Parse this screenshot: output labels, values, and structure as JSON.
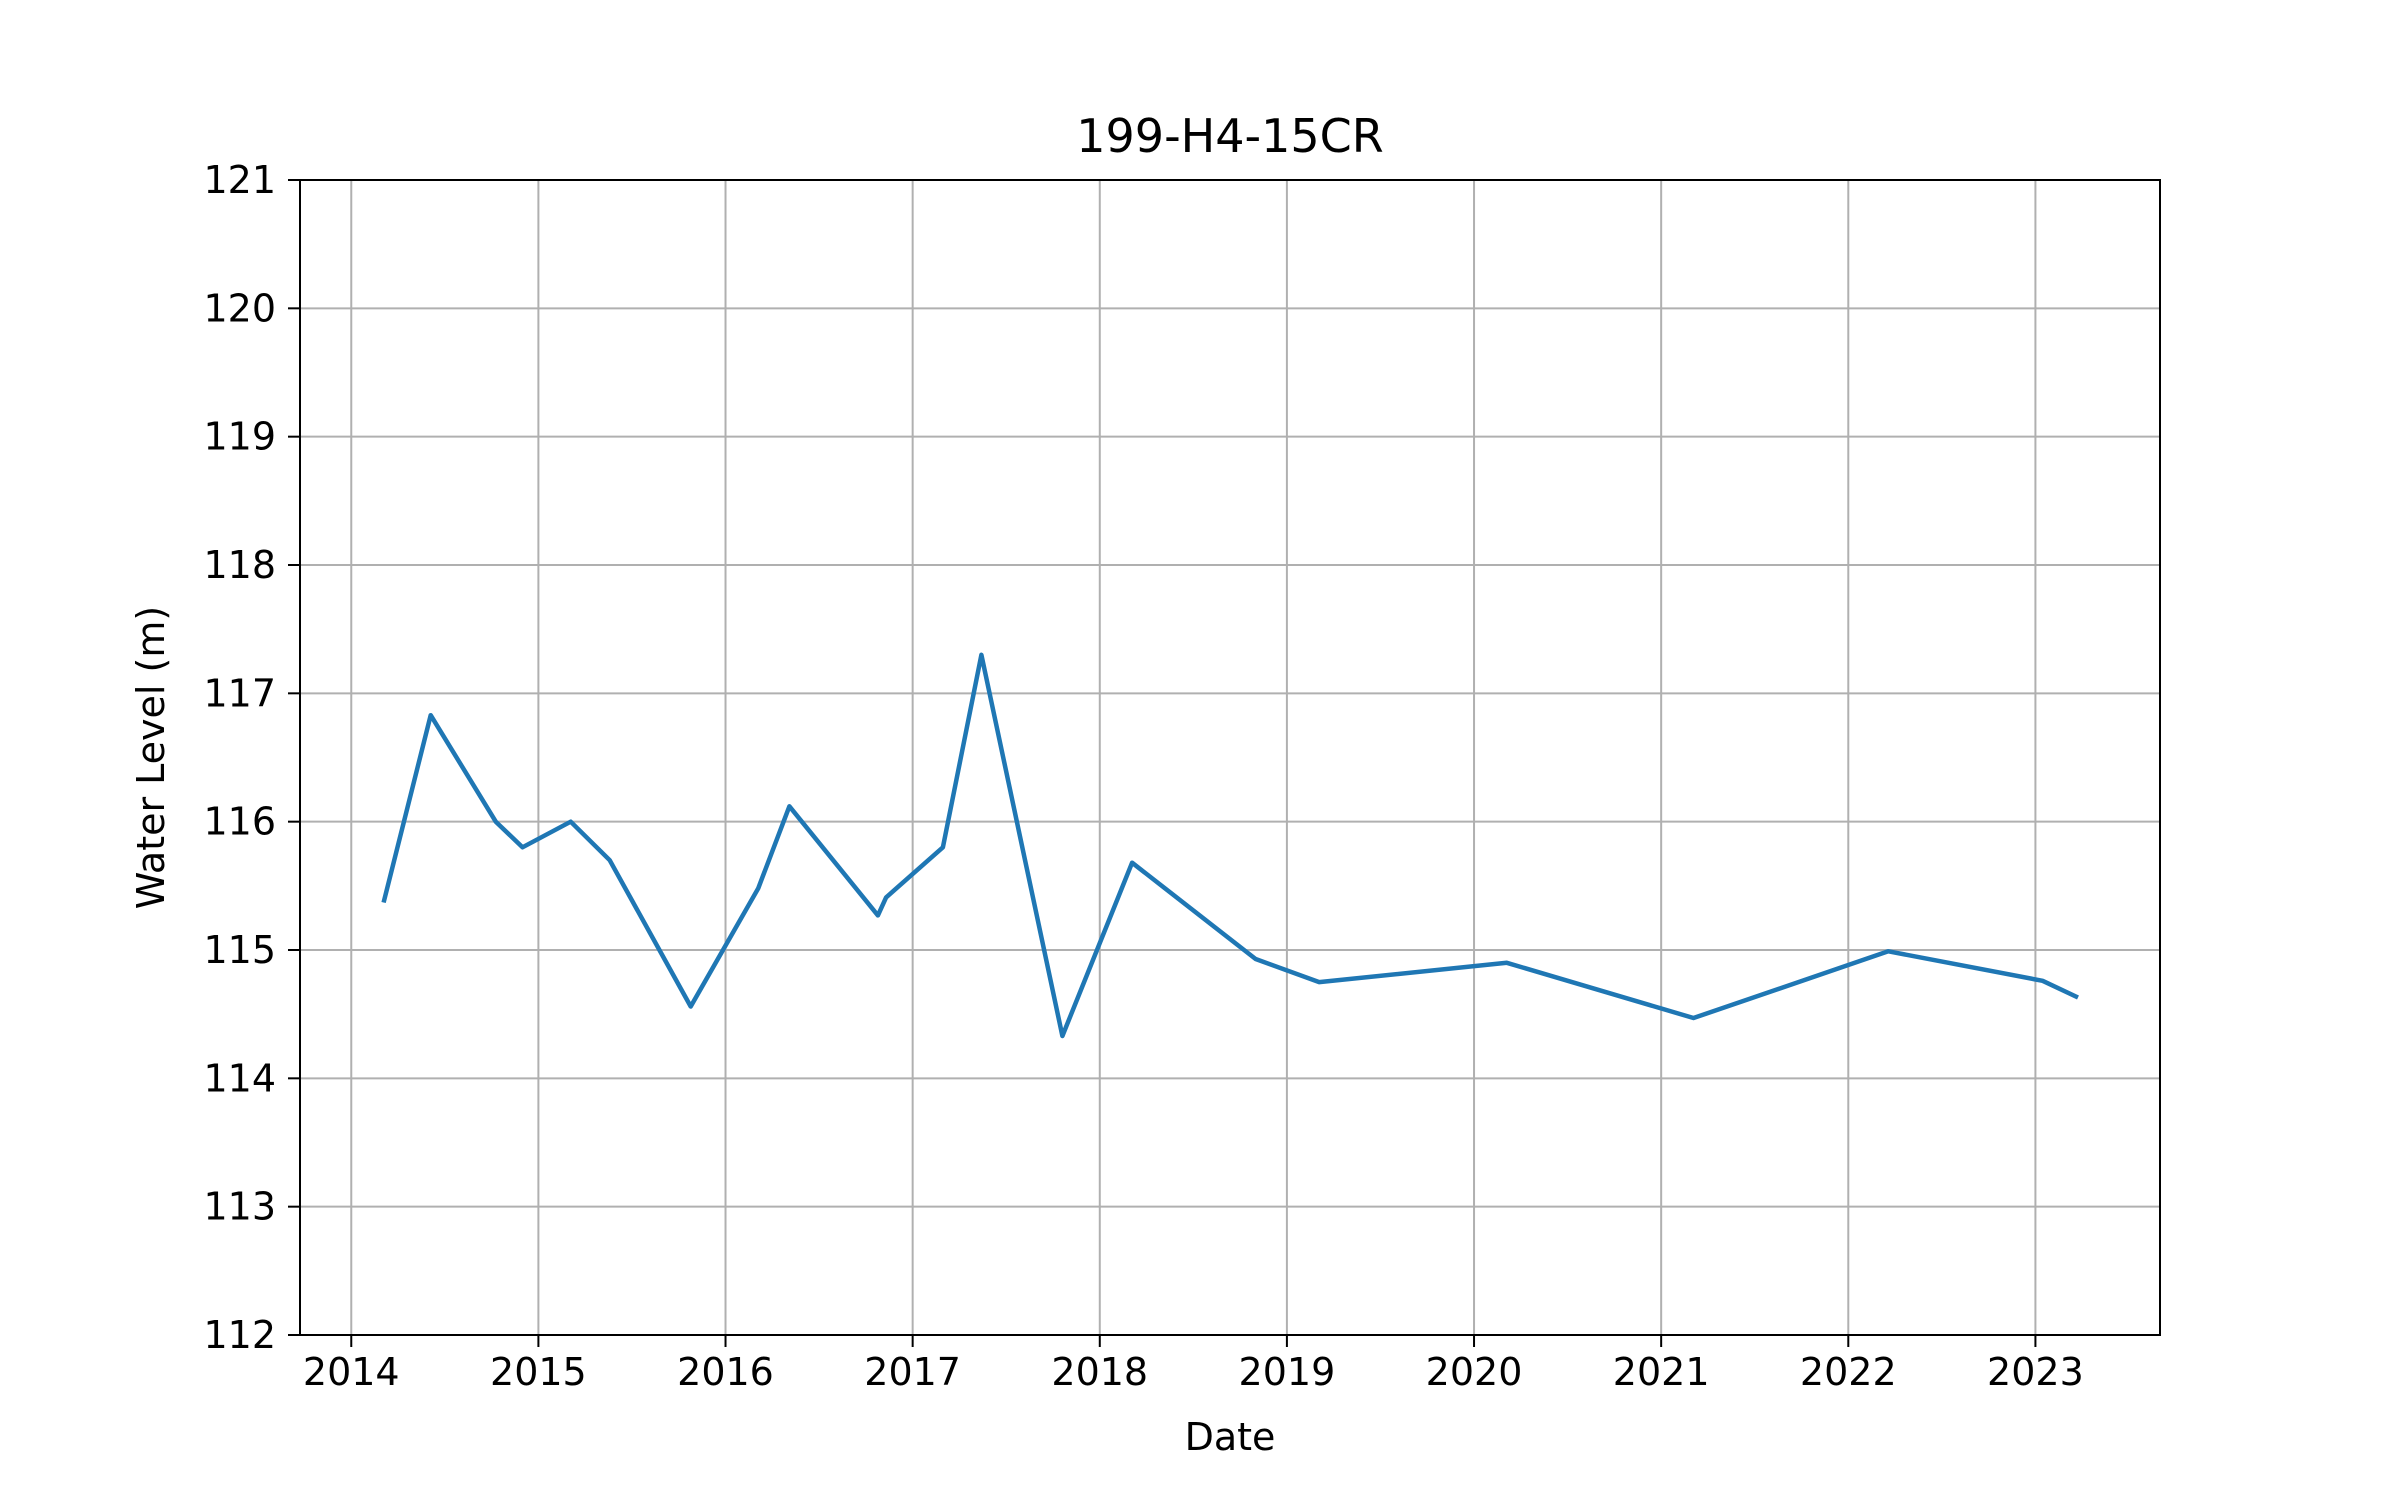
{
  "chart_data": {
    "type": "line",
    "title": "199-H4-15CR",
    "xlabel": "Date",
    "ylabel": "Water Level (m)",
    "xlim": [
      "2013-09-23",
      "2023-09-01"
    ],
    "ylim": [
      112,
      121
    ],
    "x_ticks": [
      "2014",
      "2015",
      "2016",
      "2017",
      "2018",
      "2019",
      "2020",
      "2021",
      "2022",
      "2023"
    ],
    "y_ticks": [
      "112",
      "113",
      "114",
      "115",
      "116",
      "117",
      "118",
      "119",
      "120",
      "121"
    ],
    "grid": true,
    "line_color": "#1f77b4",
    "series": [
      {
        "points": [
          {
            "date": "2014-03-05",
            "value": 115.37
          },
          {
            "date": "2014-06-05",
            "value": 116.83
          },
          {
            "date": "2014-10-10",
            "value": 116.0
          },
          {
            "date": "2014-12-01",
            "value": 115.8
          },
          {
            "date": "2015-03-05",
            "value": 116.0
          },
          {
            "date": "2015-05-20",
            "value": 115.7
          },
          {
            "date": "2015-10-25",
            "value": 114.56
          },
          {
            "date": "2016-03-05",
            "value": 115.48
          },
          {
            "date": "2016-05-05",
            "value": 116.12
          },
          {
            "date": "2016-10-25",
            "value": 115.27
          },
          {
            "date": "2016-11-10",
            "value": 115.41
          },
          {
            "date": "2017-03-01",
            "value": 115.8
          },
          {
            "date": "2017-05-15",
            "value": 117.3
          },
          {
            "date": "2017-10-20",
            "value": 114.33
          },
          {
            "date": "2018-03-05",
            "value": 115.68
          },
          {
            "date": "2018-11-01",
            "value": 114.93
          },
          {
            "date": "2019-03-05",
            "value": 114.75
          },
          {
            "date": "2020-03-05",
            "value": 114.9
          },
          {
            "date": "2021-03-05",
            "value": 114.47
          },
          {
            "date": "2022-03-20",
            "value": 114.99
          },
          {
            "date": "2023-01-15",
            "value": 114.76
          },
          {
            "date": "2023-03-25",
            "value": 114.63
          }
        ]
      }
    ]
  }
}
